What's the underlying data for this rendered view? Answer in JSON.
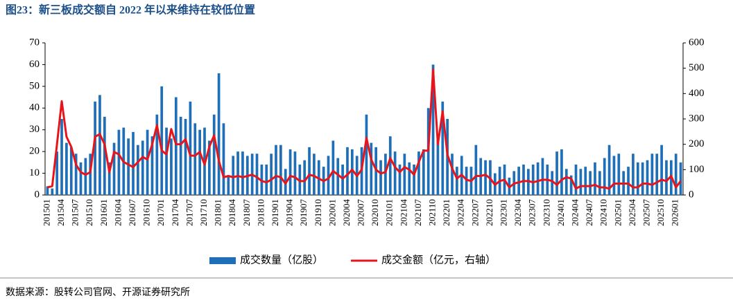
{
  "chart_data": {
    "type": "bar-line",
    "title": "图23：新三板成交额自 2022 年以来维持在较低位置",
    "source": "数据来源：股转公司官网、开源证券研究所",
    "categories": [
      "201501",
      null,
      null,
      "201504",
      null,
      null,
      "201507",
      null,
      null,
      "201510",
      null,
      null,
      "201601",
      null,
      null,
      "201604",
      null,
      null,
      "201607",
      null,
      null,
      "201610",
      null,
      null,
      "201701",
      null,
      null,
      "201704",
      null,
      null,
      "201707",
      null,
      null,
      "201710",
      null,
      null,
      "201801",
      null,
      null,
      "201804",
      null,
      null,
      "201807",
      null,
      null,
      "201810",
      null,
      null,
      "201901",
      null,
      null,
      "201904",
      null,
      null,
      "201907",
      null,
      null,
      "201910",
      null,
      null,
      "202001",
      null,
      null,
      "202004",
      null,
      null,
      "202007",
      null,
      null,
      "202010",
      null,
      null,
      "202101",
      null,
      null,
      "202104",
      null,
      null,
      "202107",
      null,
      null,
      "202110",
      null,
      null,
      "202201",
      null,
      null,
      "202204",
      null,
      null,
      "202207",
      null,
      null,
      "202210",
      null,
      null,
      "202301",
      null,
      null,
      "202304",
      null,
      null,
      "202307",
      null,
      null,
      "202310",
      null,
      null,
      "202401",
      null,
      null,
      "202404",
      null,
      null,
      "202407",
      null,
      null,
      "202410",
      null,
      null,
      "202501",
      null,
      null,
      "202504",
      null,
      null,
      "202507",
      null,
      null,
      "202510",
      null,
      null,
      "202601",
      null
    ],
    "series": [
      {
        "name": "成交数量（亿股）",
        "color": "#1f6fb8",
        "values": [
          4,
          3,
          20,
          35,
          24,
          22,
          19,
          15,
          17,
          19,
          43,
          46,
          36,
          15,
          24,
          30,
          31,
          26,
          29,
          23,
          25,
          30,
          27,
          37,
          50,
          31,
          26,
          45,
          36,
          35,
          43,
          33,
          30,
          31,
          25,
          37,
          56,
          33,
          9,
          18,
          20,
          20,
          18,
          19,
          19,
          14,
          14,
          19,
          23,
          23,
          12,
          21,
          20,
          14,
          16,
          22,
          19,
          16,
          13,
          18,
          25,
          17,
          14,
          22,
          21,
          18,
          22,
          37,
          24,
          22,
          16,
          19,
          27,
          20,
          14,
          19,
          15,
          14,
          20,
          21,
          40,
          60,
          28,
          43,
          35,
          19,
          13,
          18,
          13,
          13,
          23,
          17,
          16,
          16,
          10,
          13,
          14,
          8,
          11,
          13,
          14,
          12,
          14,
          15,
          17,
          14,
          11,
          20,
          21,
          12,
          9,
          14,
          12,
          13,
          11,
          15,
          11,
          17,
          23,
          18,
          19,
          11,
          13,
          19,
          15,
          15,
          16,
          19,
          19,
          23,
          16,
          16,
          19,
          15
        ]
      },
      {
        "name": "成交金额（亿元，右轴）",
        "color": "#e8141b",
        "axis": "y2",
        "values": [
          30,
          35,
          200,
          370,
          230,
          190,
          120,
          90,
          80,
          90,
          230,
          240,
          200,
          90,
          170,
          160,
          130,
          120,
          110,
          130,
          150,
          140,
          200,
          275,
          175,
          160,
          260,
          200,
          200,
          220,
          155,
          155,
          170,
          120,
          190,
          235,
          135,
          70,
          75,
          70,
          75,
          70,
          75,
          80,
          70,
          55,
          50,
          60,
          75,
          70,
          45,
          75,
          70,
          55,
          55,
          80,
          75,
          65,
          55,
          65,
          95,
          80,
          65,
          80,
          100,
          75,
          100,
          225,
          140,
          100,
          85,
          90,
          145,
          110,
          90,
          110,
          100,
          80,
          130,
          175,
          175,
          495,
          200,
          330,
          160,
          105,
          65,
          80,
          60,
          55,
          75,
          75,
          80,
          65,
          40,
          55,
          60,
          30,
          45,
          50,
          55,
          55,
          50,
          55,
          60,
          60,
          55,
          40,
          60,
          70,
          65,
          25,
          35,
          35,
          35,
          40,
          30,
          30,
          25,
          45,
          45,
          45,
          45,
          30,
          30,
          45,
          45,
          40,
          50,
          60,
          55,
          75,
          30,
          55
        ]
      }
    ],
    "ylim": [
      0,
      70
    ],
    "yticks": [
      0,
      10,
      20,
      30,
      40,
      50,
      60,
      70
    ],
    "y2lim": [
      0,
      600
    ],
    "y2ticks": [
      0,
      100,
      200,
      300,
      400,
      500,
      600
    ]
  }
}
